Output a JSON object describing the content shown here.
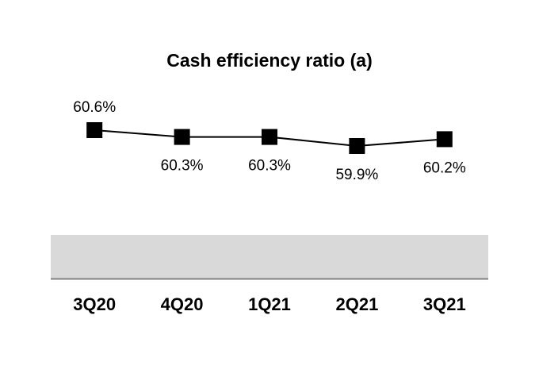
{
  "chart_data": {
    "type": "line",
    "title": "Cash efficiency ratio (a)",
    "categories": [
      "3Q20",
      "4Q20",
      "1Q21",
      "2Q21",
      "3Q21"
    ],
    "series": [
      {
        "values": [
          60.6,
          60.3,
          60.3,
          59.9,
          60.2
        ],
        "labels": [
          "60.6%",
          "60.3%",
          "60.3%",
          "59.9%",
          "60.2%"
        ]
      }
    ],
    "xlabel": "",
    "ylabel": "",
    "ylim": [
      58.0,
      62.0
    ],
    "grid": false,
    "legend": "none",
    "line_color": "#000000",
    "marker_color": "#000000",
    "band_color": "#d9d9d9",
    "axis_color": "#808080"
  }
}
